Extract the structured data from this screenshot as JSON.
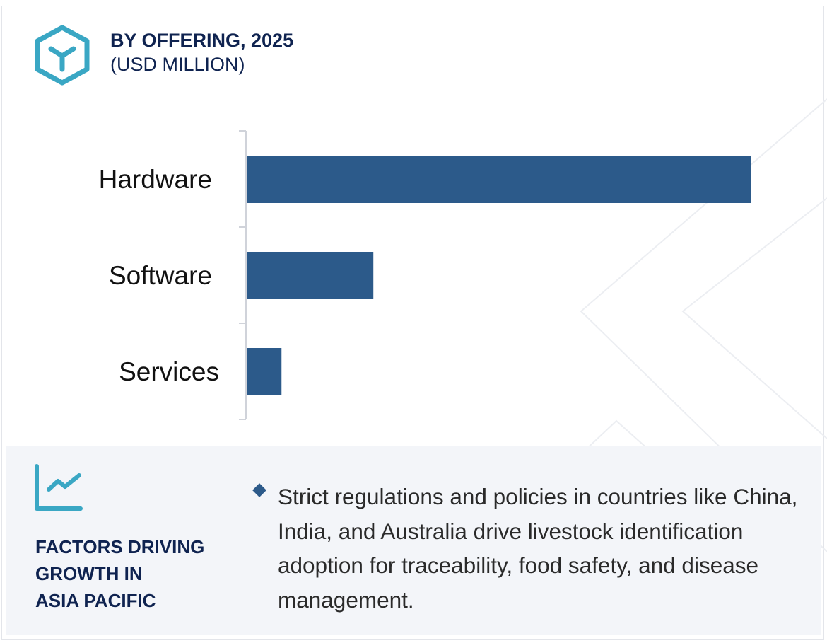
{
  "header": {
    "icon": "hexagon-y-icon",
    "title": "BY OFFERING, 2025",
    "subtitle": "(USD MILLION)"
  },
  "chart_data": {
    "type": "bar",
    "orientation": "horizontal",
    "categories": [
      "Hardware",
      "Software",
      "Services"
    ],
    "values": [
      100,
      25.1,
      6.9
    ],
    "value_note": "relative bar lengths (no axis scale printed)",
    "xlim": [
      0,
      100
    ],
    "grid": false,
    "legend": "none",
    "colors": {
      "bar": "#2c5a8a",
      "axis": "#d0d3da"
    }
  },
  "footer": {
    "icon": "trend-line-chart-icon",
    "heading_lines": [
      "FACTORS DRIVING",
      "GROWTH IN",
      "ASIA PACIFIC"
    ],
    "bullet_icon": "diamond-bullet-icon",
    "description": "Strict regulations and policies in countries like China, India, and Australia drive livestock identification adoption for traceability, food safety, and disease management."
  },
  "colors": {
    "accent": "#3aa7c4",
    "heading": "#0f2350",
    "panel_bg": "#f3f5f9"
  }
}
